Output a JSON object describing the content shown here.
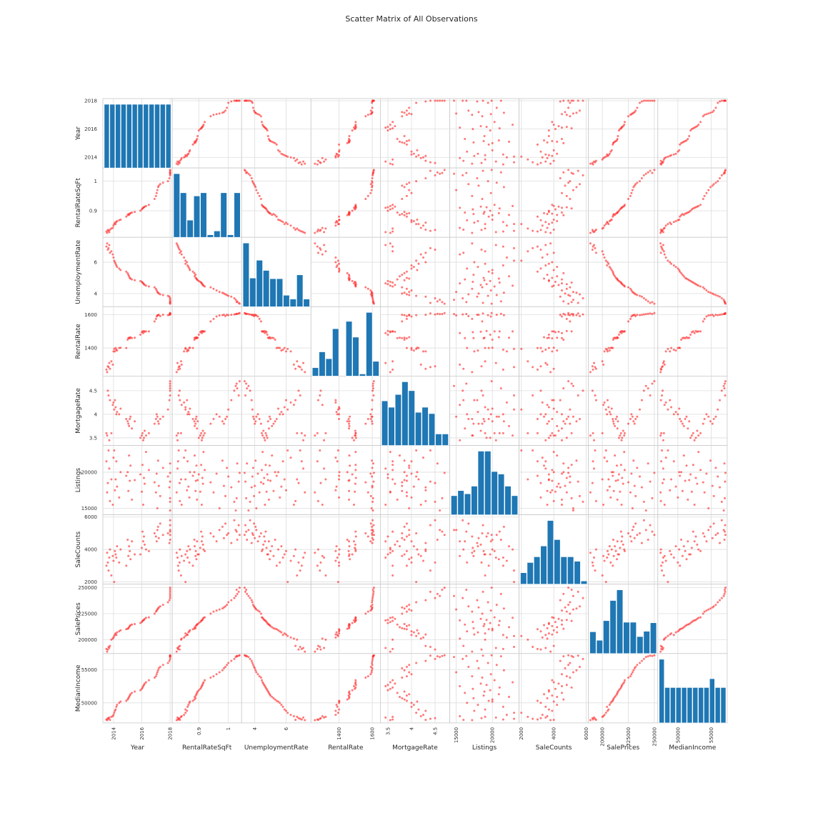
{
  "chart_data": {
    "type": "scatter",
    "title": "Scatter Matrix of All Observations",
    "diagonal": "histogram",
    "grid": true,
    "colors": {
      "points": "#ff2020",
      "bars": "#1f77b4",
      "grid": "#dddddd",
      "frame": "#c8c8c8"
    },
    "variables": [
      {
        "name": "Year",
        "range": [
          2013.35,
          2018.05
        ],
        "ticks": [
          2014,
          2016,
          2018
        ],
        "hist": [
          1,
          1,
          1,
          1,
          1,
          1,
          1,
          1,
          1,
          1,
          1,
          1
        ]
      },
      {
        "name": "RentalRateSqFt",
        "range": [
          0.815,
          1.04
        ],
        "ticks": [
          0.9,
          1.0
        ],
        "tick_labels": {
          "0.9": "0.9",
          "1.0": "1.0"
        },
        "hist": [
          10,
          7,
          2.7,
          6.5,
          7,
          0.4,
          1,
          7,
          0.4,
          7
        ]
      },
      {
        "name": "UnemploymentRate",
        "range": [
          3.25,
          7.5
        ],
        "ticks": [
          4,
          6
        ],
        "hist": [
          10,
          4.5,
          7.3,
          5.7,
          4.4,
          4.4,
          1.8,
          1.2,
          5,
          1.2
        ]
      },
      {
        "name": "RentalRate",
        "range": [
          1240,
          1640
        ],
        "ticks": [
          1400,
          1600
        ],
        "hist": [
          1.6,
          4.6,
          3.3,
          9,
          0,
          10.4,
          7.4,
          0.4,
          12.1,
          2.8
        ]
      },
      {
        "name": "MortgageRate",
        "range": [
          3.37,
          4.78
        ],
        "ticks": [
          3.5,
          4.0,
          4.5
        ],
        "tick_labels": {
          "3.5": "3.5",
          "4.0": "4.0",
          "4.5": "4.5"
        },
        "hist": [
          7,
          6,
          8,
          10,
          8.6,
          5.2,
          6,
          5,
          1.8,
          1.8
        ]
      },
      {
        "name": "Listings",
        "range": [
          14300,
          23500
        ],
        "ticks": [
          15000,
          20000
        ],
        "hist": [
          3,
          3.8,
          3.3,
          4.5,
          10,
          10,
          6.8,
          6.4,
          4.5,
          3
        ]
      },
      {
        "name": "SaleCounts",
        "range": [
          1950,
          6050
        ],
        "ticks": [
          2000,
          4000,
          6000
        ],
        "hist": [
          1.8,
          3.4,
          4.3,
          6,
          10,
          7,
          4.3,
          4.3,
          3.6,
          0.5
        ]
      },
      {
        "name": "SalePrices",
        "range": [
          188000,
          252000
        ],
        "ticks": [
          200000,
          225000,
          250000
        ],
        "hist": [
          4.1,
          2.5,
          6.2,
          10,
          12,
          5.9,
          5.9,
          3.2,
          4.2,
          5.8
        ]
      },
      {
        "name": "MedianIncome",
        "range": [
          47200,
          57200
        ],
        "ticks": [
          50000,
          55000
        ],
        "hist": [
          18,
          10,
          10,
          10,
          10,
          10,
          10,
          10,
          10,
          12.5,
          10,
          10
        ]
      }
    ],
    "observations": [
      [
        2013.5,
        0.83,
        7.0,
        1270,
        3.6,
        21500,
        3000,
        191000,
        47500
      ],
      [
        2013.55,
        0.825,
        7.2,
        1255,
        3.55,
        17200,
        3800,
        188500,
        47400
      ],
      [
        2013.6,
        0.835,
        6.8,
        1290,
        4.5,
        18500,
        3200,
        190500,
        47700
      ],
      [
        2013.65,
        0.832,
        6.9,
        1285,
        4.4,
        23000,
        2700,
        193000,
        47600
      ],
      [
        2013.7,
        0.828,
        7.1,
        1310,
        3.45,
        20500,
        3500,
        192000,
        47800
      ],
      [
        2013.75,
        0.836,
        6.6,
        1275,
        4.3,
        16000,
        4000,
        194000,
        47450
      ],
      [
        2013.85,
        0.84,
        6.7,
        1320,
        3.6,
        19000,
        2400,
        200000,
        47900
      ],
      [
        2013.95,
        0.842,
        6.5,
        1300,
        4.2,
        15500,
        3600,
        201000,
        48000
      ],
      [
        2014.0,
        0.85,
        6.3,
        1380,
        4.25,
        22000,
        3300,
        202000,
        48200
      ],
      [
        2014.05,
        0.855,
        6.1,
        1395,
        4.1,
        23000,
        2000,
        203500,
        48500
      ],
      [
        2014.1,
        0.86,
        6.0,
        1380,
        4.3,
        17500,
        3900,
        205000,
        48800
      ],
      [
        2014.15,
        0.855,
        5.9,
        1400,
        4.15,
        19000,
        3700,
        206000,
        49000
      ],
      [
        2014.2,
        0.862,
        5.8,
        1390,
        4.0,
        21500,
        3500,
        204500,
        49400
      ],
      [
        2014.25,
        0.865,
        5.7,
        1385,
        4.05,
        18000,
        4200,
        207000,
        49700
      ],
      [
        2014.4,
        0.868,
        5.6,
        1400,
        4.0,
        16500,
        3200,
        208000,
        50000
      ],
      [
        2014.5,
        0.87,
        5.5,
        1402,
        4.12,
        20000,
        4000,
        209000,
        50200
      ],
      [
        2014.9,
        0.88,
        5.4,
        1400,
        3.9,
        19500,
        3000,
        210000,
        50300
      ],
      [
        2015.0,
        0.885,
        5.3,
        1450,
        3.85,
        20000,
        4600,
        210500,
        50500
      ],
      [
        2015.05,
        0.889,
        5.2,
        1460,
        3.8,
        17400,
        3600,
        211000,
        50700
      ],
      [
        2015.1,
        0.886,
        5.1,
        1462,
        3.75,
        22300,
        4200,
        212000,
        50900
      ],
      [
        2015.15,
        0.89,
        5.0,
        1458,
        3.9,
        18800,
        3900,
        213000,
        51100
      ],
      [
        2015.2,
        0.892,
        4.95,
        1465,
        3.95,
        20900,
        3400,
        214000,
        51300
      ],
      [
        2015.3,
        0.894,
        4.9,
        1460,
        3.7,
        16200,
        4500,
        214500,
        51500
      ],
      [
        2015.5,
        0.896,
        4.85,
        1462,
        3.85,
        18900,
        3700,
        215000,
        51700
      ],
      [
        2015.9,
        0.9,
        4.8,
        1480,
        3.5,
        19700,
        3700,
        216000,
        51900
      ],
      [
        2016.0,
        0.905,
        4.75,
        1495,
        3.55,
        17300,
        4100,
        217000,
        52100
      ],
      [
        2016.05,
        0.908,
        4.7,
        1500,
        3.6,
        21000,
        5100,
        218000,
        52300
      ],
      [
        2016.1,
        0.91,
        4.65,
        1490,
        3.45,
        15500,
        4500,
        218500,
        52500
      ],
      [
        2016.15,
        0.912,
        4.6,
        1502,
        3.5,
        19200,
        4800,
        219000,
        52700
      ],
      [
        2016.2,
        0.914,
        4.55,
        1498,
        3.65,
        18400,
        4300,
        220000,
        52900
      ],
      [
        2016.3,
        0.916,
        4.5,
        1500,
        3.55,
        22800,
        4000,
        221000,
        53100
      ],
      [
        2016.5,
        0.92,
        4.45,
        1500,
        3.6,
        20300,
        3900,
        221500,
        53400
      ],
      [
        2016.9,
        0.94,
        4.4,
        1560,
        3.8,
        18600,
        5000,
        225000,
        53800
      ],
      [
        2017.0,
        0.95,
        4.3,
        1575,
        3.9,
        17200,
        4800,
        227000,
        54000
      ],
      [
        2017.05,
        0.96,
        4.2,
        1590,
        4.0,
        19800,
        4500,
        228000,
        54300
      ],
      [
        2017.1,
        0.97,
        4.1,
        1596,
        3.95,
        15000,
        5200,
        229000,
        54600
      ],
      [
        2017.15,
        0.98,
        4.05,
        1598,
        3.85,
        21600,
        5400,
        230000,
        54900
      ],
      [
        2017.2,
        0.985,
        4.0,
        1600,
        3.8,
        18100,
        4700,
        231000,
        55200
      ],
      [
        2017.3,
        0.99,
        3.95,
        1592,
        3.9,
        16700,
        5600,
        232000,
        55400
      ],
      [
        2017.5,
        0.995,
        3.9,
        1600,
        3.95,
        20600,
        4900,
        233500,
        55700
      ],
      [
        2017.85,
        1.0,
        3.85,
        1598,
        4.1,
        19400,
        5000,
        236000,
        56000
      ],
      [
        2017.95,
        1.01,
        3.8,
        1600,
        4.3,
        17900,
        4400,
        238000,
        56300
      ],
      [
        2018.0,
        1.02,
        3.7,
        1602,
        4.5,
        15900,
        5800,
        240000,
        56600
      ],
      [
        2018.0,
        1.025,
        3.6,
        1604,
        4.6,
        14700,
        5200,
        242000,
        56900
      ],
      [
        2018.0,
        1.03,
        3.5,
        1606,
        4.55,
        21200,
        4600,
        244000,
        57000
      ],
      [
        2018.0,
        1.035,
        3.4,
        1608,
        4.4,
        18700,
        5500,
        246000,
        57100
      ],
      [
        2018.0,
        1.028,
        3.45,
        1605,
        4.65,
        16400,
        5100,
        248000,
        57050
      ],
      [
        2018.0,
        1.038,
        3.35,
        1610,
        4.7,
        19900,
        4900,
        250000,
        57150
      ]
    ]
  }
}
